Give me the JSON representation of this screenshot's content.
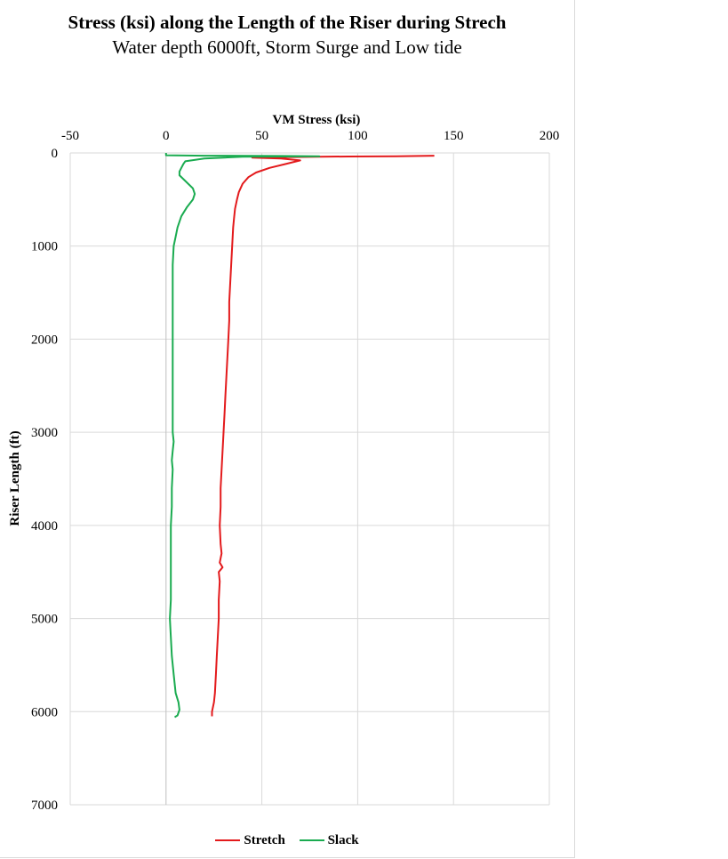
{
  "chart_data": {
    "type": "line",
    "title": "Stress (ksi) along the Length of the Riser during Strech",
    "subtitle": "Water depth 6000ft, Storm Surge and Low tide",
    "xlabel": "VM Stress (ksi)",
    "ylabel": "Riser Length (ft)",
    "xlim": [
      -50,
      200
    ],
    "ylim": [
      0,
      7000
    ],
    "y_inverted": true,
    "x_axis_position": "top",
    "x_ticks": [
      -50,
      0,
      50,
      100,
      150,
      200
    ],
    "y_ticks": [
      0,
      1000,
      2000,
      3000,
      4000,
      5000,
      6000,
      7000
    ],
    "grid": true,
    "legend_position": "bottom",
    "series": [
      {
        "name": "Stretch",
        "color": "#e31a1c",
        "points": [
          {
            "x": 140,
            "y": 30
          },
          {
            "x": 120,
            "y": 35
          },
          {
            "x": 95,
            "y": 38
          },
          {
            "x": 80,
            "y": 40
          },
          {
            "x": 62,
            "y": 45
          },
          {
            "x": 45,
            "y": 50
          },
          {
            "x": 60,
            "y": 60
          },
          {
            "x": 70,
            "y": 80
          },
          {
            "x": 62,
            "y": 120
          },
          {
            "x": 54,
            "y": 160
          },
          {
            "x": 47,
            "y": 210
          },
          {
            "x": 43,
            "y": 260
          },
          {
            "x": 40,
            "y": 330
          },
          {
            "x": 38,
            "y": 420
          },
          {
            "x": 37,
            "y": 500
          },
          {
            "x": 36,
            "y": 600
          },
          {
            "x": 35.5,
            "y": 700
          },
          {
            "x": 35,
            "y": 800
          },
          {
            "x": 34.5,
            "y": 1000
          },
          {
            "x": 34,
            "y": 1200
          },
          {
            "x": 33.5,
            "y": 1400
          },
          {
            "x": 33,
            "y": 1600
          },
          {
            "x": 33,
            "y": 1800
          },
          {
            "x": 32.5,
            "y": 2000
          },
          {
            "x": 32,
            "y": 2200
          },
          {
            "x": 31.5,
            "y": 2400
          },
          {
            "x": 31,
            "y": 2600
          },
          {
            "x": 30.5,
            "y": 2800
          },
          {
            "x": 30,
            "y": 3000
          },
          {
            "x": 29.5,
            "y": 3200
          },
          {
            "x": 29,
            "y": 3400
          },
          {
            "x": 28.5,
            "y": 3600
          },
          {
            "x": 28.5,
            "y": 3800
          },
          {
            "x": 28,
            "y": 4000
          },
          {
            "x": 28.5,
            "y": 4200
          },
          {
            "x": 29,
            "y": 4300
          },
          {
            "x": 28,
            "y": 4400
          },
          {
            "x": 29.5,
            "y": 4450
          },
          {
            "x": 27.5,
            "y": 4500
          },
          {
            "x": 28,
            "y": 4600
          },
          {
            "x": 27.5,
            "y": 4800
          },
          {
            "x": 27.5,
            "y": 5000
          },
          {
            "x": 27,
            "y": 5200
          },
          {
            "x": 26.5,
            "y": 5400
          },
          {
            "x": 26,
            "y": 5600
          },
          {
            "x": 25.5,
            "y": 5800
          },
          {
            "x": 25,
            "y": 5900
          },
          {
            "x": 24,
            "y": 6000
          },
          {
            "x": 24,
            "y": 6050
          }
        ]
      },
      {
        "name": "Slack",
        "color": "#1aab50",
        "points": [
          {
            "x": 0,
            "y": 0
          },
          {
            "x": 0,
            "y": 25
          },
          {
            "x": 20,
            "y": 30
          },
          {
            "x": 60,
            "y": 32
          },
          {
            "x": 80,
            "y": 35
          },
          {
            "x": 40,
            "y": 40
          },
          {
            "x": 20,
            "y": 60
          },
          {
            "x": 10,
            "y": 90
          },
          {
            "x": 9,
            "y": 120
          },
          {
            "x": 8,
            "y": 160
          },
          {
            "x": 7,
            "y": 200
          },
          {
            "x": 7,
            "y": 240
          },
          {
            "x": 9.5,
            "y": 290
          },
          {
            "x": 12,
            "y": 340
          },
          {
            "x": 14,
            "y": 380
          },
          {
            "x": 15,
            "y": 440
          },
          {
            "x": 14,
            "y": 500
          },
          {
            "x": 11,
            "y": 580
          },
          {
            "x": 8,
            "y": 680
          },
          {
            "x": 6,
            "y": 800
          },
          {
            "x": 5,
            "y": 900
          },
          {
            "x": 4,
            "y": 1000
          },
          {
            "x": 3.5,
            "y": 1200
          },
          {
            "x": 3.5,
            "y": 1500
          },
          {
            "x": 3.5,
            "y": 2000
          },
          {
            "x": 3.5,
            "y": 2500
          },
          {
            "x": 3.5,
            "y": 3000
          },
          {
            "x": 4,
            "y": 3100
          },
          {
            "x": 3.5,
            "y": 3200
          },
          {
            "x": 3,
            "y": 3300
          },
          {
            "x": 3.5,
            "y": 3400
          },
          {
            "x": 3,
            "y": 3600
          },
          {
            "x": 3,
            "y": 3800
          },
          {
            "x": 2.5,
            "y": 4000
          },
          {
            "x": 2.5,
            "y": 4200
          },
          {
            "x": 2.5,
            "y": 4500
          },
          {
            "x": 2.5,
            "y": 4800
          },
          {
            "x": 2,
            "y": 5000
          },
          {
            "x": 2.5,
            "y": 5200
          },
          {
            "x": 3,
            "y": 5400
          },
          {
            "x": 4,
            "y": 5600
          },
          {
            "x": 5,
            "y": 5800
          },
          {
            "x": 6.5,
            "y": 5900
          },
          {
            "x": 7,
            "y": 5980
          },
          {
            "x": 6,
            "y": 6040
          },
          {
            "x": 4.5,
            "y": 6060
          }
        ]
      }
    ]
  }
}
